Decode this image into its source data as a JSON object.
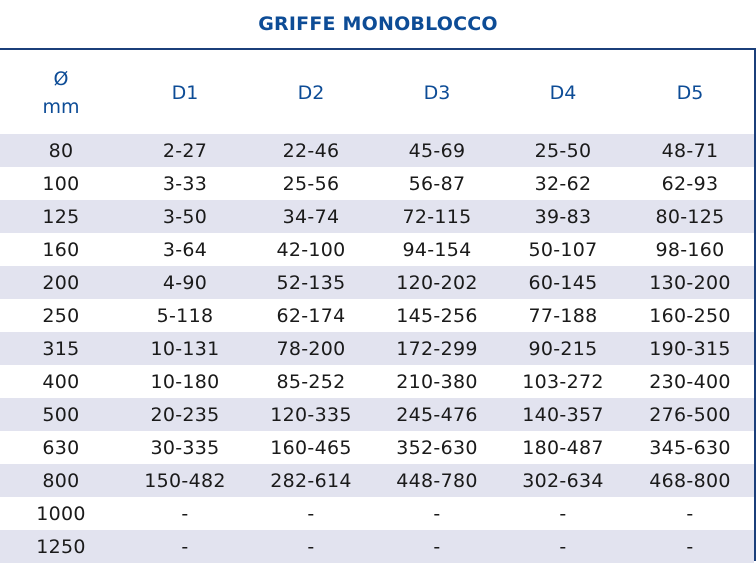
{
  "title": "GRIFFE MONOBLOCCO",
  "header": {
    "first_top": "Ø",
    "first_bottom": "mm",
    "columns": [
      "D1",
      "D2",
      "D3",
      "D4",
      "D5"
    ]
  },
  "rows": [
    {
      "mm": "80",
      "d": [
        "2-27",
        "22-46",
        "45-69",
        "25-50",
        "48-71"
      ]
    },
    {
      "mm": "100",
      "d": [
        "3-33",
        "25-56",
        "56-87",
        "32-62",
        "62-93"
      ]
    },
    {
      "mm": "125",
      "d": [
        "3-50",
        "34-74",
        "72-115",
        "39-83",
        "80-125"
      ]
    },
    {
      "mm": "160",
      "d": [
        "3-64",
        "42-100",
        "94-154",
        "50-107",
        "98-160"
      ]
    },
    {
      "mm": "200",
      "d": [
        "4-90",
        "52-135",
        "120-202",
        "60-145",
        "130-200"
      ]
    },
    {
      "mm": "250",
      "d": [
        "5-118",
        "62-174",
        "145-256",
        "77-188",
        "160-250"
      ]
    },
    {
      "mm": "315",
      "d": [
        "10-131",
        "78-200",
        "172-299",
        "90-215",
        "190-315"
      ]
    },
    {
      "mm": "400",
      "d": [
        "10-180",
        "85-252",
        "210-380",
        "103-272",
        "230-400"
      ]
    },
    {
      "mm": "500",
      "d": [
        "20-235",
        "120-335",
        "245-476",
        "140-357",
        "276-500"
      ]
    },
    {
      "mm": "630",
      "d": [
        "30-335",
        "160-465",
        "352-630",
        "180-487",
        "345-630"
      ]
    },
    {
      "mm": "800",
      "d": [
        "150-482",
        "282-614",
        "448-780",
        "302-634",
        "468-800"
      ]
    },
    {
      "mm": "1000",
      "d": [
        "-",
        "-",
        "-",
        "-",
        "-"
      ]
    },
    {
      "mm": "1250",
      "d": [
        "-",
        "-",
        "-",
        "-",
        "-"
      ]
    }
  ],
  "colors": {
    "accent": "#0d4c96",
    "border": "#1b3f7a",
    "row_shade": "#e2e3ef"
  }
}
